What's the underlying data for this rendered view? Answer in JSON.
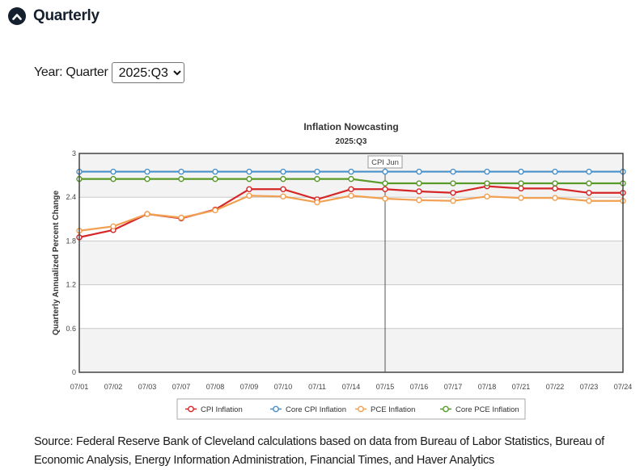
{
  "section": {
    "title": "Quarterly",
    "collapse_icon": "chevron-up-icon"
  },
  "selector": {
    "label": "Year: Quarter",
    "selected": "2025:Q3"
  },
  "chart_data": {
    "type": "line",
    "title": "Inflation Nowcasting",
    "subtitle": "2025:Q3",
    "xlabel": "",
    "ylabel": "Quarterly Annualized Percent Change",
    "ylim": [
      0,
      3
    ],
    "yticks": [
      "0",
      "0.6",
      "1.2",
      "1.8",
      "2.4",
      "3"
    ],
    "grid": "alternating horizontal bands",
    "legend_position": "bottom",
    "annotation": {
      "label": "CPI Jun",
      "at": "07/15"
    },
    "categories": [
      "07/01",
      "07/02",
      "07/03",
      "07/07",
      "07/08",
      "07/09",
      "07/10",
      "07/11",
      "07/14",
      "07/15",
      "07/16",
      "07/17",
      "07/18",
      "07/21",
      "07/22",
      "07/23",
      "07/24"
    ],
    "series": [
      {
        "name": "CPI Inflation",
        "color": "#d62728",
        "values": [
          1.85,
          1.95,
          2.17,
          2.11,
          2.23,
          2.51,
          2.51,
          2.37,
          2.51,
          2.51,
          2.48,
          2.46,
          2.55,
          2.52,
          2.52,
          2.46,
          2.46
        ]
      },
      {
        "name": "Core CPI Inflation",
        "color": "#4a90c8",
        "values": [
          2.75,
          2.75,
          2.75,
          2.75,
          2.75,
          2.75,
          2.75,
          2.75,
          2.75,
          2.75,
          2.75,
          2.75,
          2.75,
          2.75,
          2.75,
          2.75,
          2.75
        ]
      },
      {
        "name": "PCE Inflation",
        "color": "#f0a050",
        "values": [
          1.94,
          2.0,
          2.17,
          2.12,
          2.22,
          2.42,
          2.41,
          2.33,
          2.42,
          2.38,
          2.36,
          2.35,
          2.41,
          2.39,
          2.39,
          2.35,
          2.35
        ]
      },
      {
        "name": "Core PCE Inflation",
        "color": "#5a9a2a",
        "values": [
          2.65,
          2.65,
          2.65,
          2.65,
          2.65,
          2.65,
          2.65,
          2.65,
          2.65,
          2.59,
          2.59,
          2.59,
          2.59,
          2.59,
          2.59,
          2.59,
          2.59
        ]
      }
    ]
  },
  "source_text": "Source: Federal Reserve Bank of Cleveland calculations based on data from Bureau of Labor Statistics, Bureau of Economic Analysis, Energy Information Administration, Financial Times, and Haver Analytics"
}
